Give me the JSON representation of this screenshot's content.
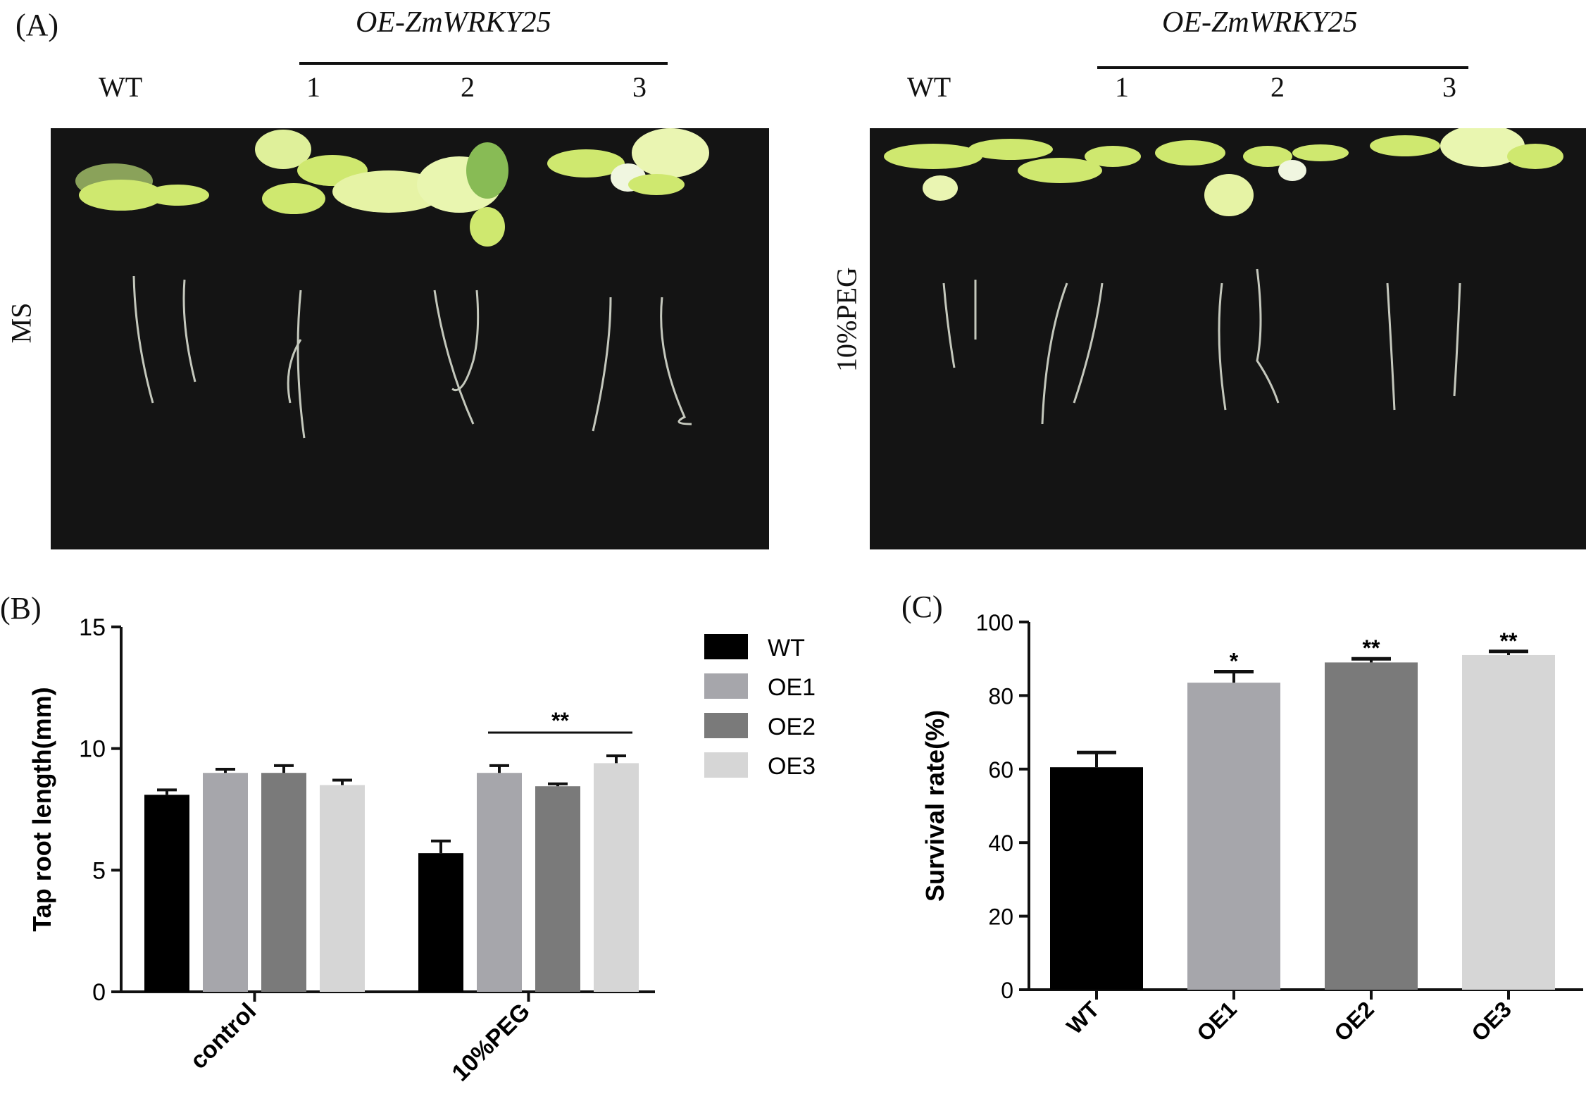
{
  "panel_a": {
    "label": "(A)",
    "left": {
      "group_label": "OE-ZmWRKY25",
      "wt_label": "WT",
      "lines": [
        "1",
        "2",
        "3"
      ],
      "condition": "MS"
    },
    "right": {
      "group_label": "OE-ZmWRKY25",
      "wt_label": "WT",
      "lines": [
        "1",
        "2",
        "3"
      ],
      "condition": "10%PEG"
    }
  },
  "panel_b": {
    "label": "(B)"
  },
  "panel_c": {
    "label": "(C)"
  },
  "chart_data": [
    {
      "type": "bar",
      "categories": [
        "control",
        "10%PEG"
      ],
      "ylabel": "Tap root length(mm)",
      "xlabel": "",
      "ylim": [
        0,
        15
      ],
      "yticks": [
        "0",
        "5",
        "10",
        "15"
      ],
      "legend_position": "top-right",
      "series": [
        {
          "name": "WT",
          "color": "#000000",
          "values": [
            8.1,
            5.7
          ],
          "errors": [
            0.2,
            0.5
          ]
        },
        {
          "name": "OE1",
          "color": "#a6a6ab",
          "values": [
            9.0,
            9.0
          ],
          "errors": [
            0.15,
            0.3
          ]
        },
        {
          "name": "OE2",
          "color": "#7a7a7a",
          "values": [
            9.0,
            8.45
          ],
          "errors": [
            0.3,
            0.1
          ]
        },
        {
          "name": "OE3",
          "color": "#d6d6d6",
          "values": [
            8.5,
            9.4
          ],
          "errors": [
            0.2,
            0.3
          ]
        }
      ],
      "annotations": [
        {
          "text": "**",
          "category": "10%PEG"
        }
      ]
    },
    {
      "type": "bar",
      "categories": [
        "WT",
        "OE1",
        "OE2",
        "OE3"
      ],
      "ylabel": "Survival rate(%)",
      "xlabel": "",
      "ylim": [
        0,
        100
      ],
      "yticks": [
        "0",
        "20",
        "40",
        "60",
        "80",
        "100"
      ],
      "values": [
        60.5,
        83.5,
        89,
        91
      ],
      "errors": [
        4,
        3,
        1,
        1
      ],
      "colors": [
        "#000000",
        "#a6a6ab",
        "#7a7a7a",
        "#d6d6d6"
      ],
      "significance": [
        "",
        "*",
        "**",
        "**"
      ]
    }
  ]
}
